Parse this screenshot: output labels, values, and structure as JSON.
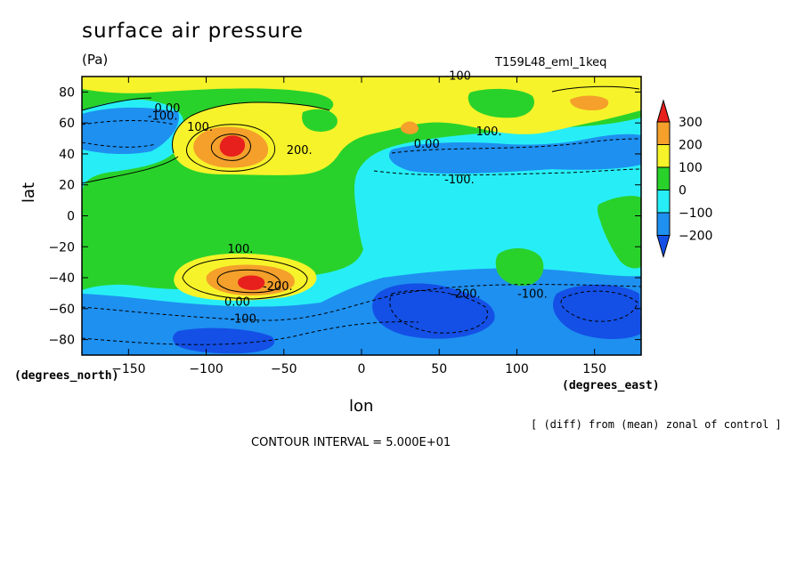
{
  "header": {
    "title": "surface air pressure",
    "units": "(Pa)",
    "run_label": "T159L48_eml_1keq"
  },
  "chart_data": {
    "type": "contour",
    "title": "surface air pressure",
    "subtitle": "(Pa)",
    "xlabel": "lon",
    "ylabel": "lat",
    "x_units": "(degrees_east)",
    "y_units": "(degrees_north)",
    "xlim": [
      -180,
      180
    ],
    "ylim": [
      -90,
      90
    ],
    "x_ticks": [
      -150,
      -100,
      -50,
      0,
      50,
      100,
      150
    ],
    "y_ticks": [
      -80,
      -60,
      -40,
      -20,
      0,
      20,
      40,
      60,
      80
    ],
    "contour_interval_text": "CONTOUR INTERVAL = 5.000E+01",
    "note": "[ (diff) from (mean) zonal of control ]",
    "colorbar": {
      "levels": [
        -200,
        -100,
        0,
        100,
        200,
        300
      ],
      "labels": [
        "300",
        "200",
        "100",
        "0",
        "−100",
        "−200"
      ],
      "colors": [
        "#e8201d",
        "#f4a02b",
        "#f6f32a",
        "#29d22b",
        "#27eef6",
        "#1e90f0",
        "#1450e6"
      ]
    },
    "contour_labels": [
      {
        "text": "0.00",
        "lon": -125,
        "lat": 67
      },
      {
        "text": "-100.",
        "lon": -128,
        "lat": 62
      },
      {
        "text": "100.",
        "lon": -104,
        "lat": 55
      },
      {
        "text": "200.",
        "lon": -40,
        "lat": 40
      },
      {
        "text": "-100",
        "lon": 62,
        "lat": 88
      },
      {
        "text": "100.",
        "lon": 82,
        "lat": 52
      },
      {
        "text": "0.00",
        "lon": 42,
        "lat": 44
      },
      {
        "text": "-100.",
        "lon": 63,
        "lat": 21
      },
      {
        "text": "100.",
        "lon": -78,
        "lat": -24
      },
      {
        "text": "-200.",
        "lon": -54,
        "lat": -48
      },
      {
        "text": "0.00",
        "lon": -80,
        "lat": -58
      },
      {
        "text": "-100.",
        "lon": -75,
        "lat": -69
      },
      {
        "text": "-200.",
        "lon": 67,
        "lat": -53
      },
      {
        "text": "-100.",
        "lon": 110,
        "lat": -53
      }
    ]
  }
}
